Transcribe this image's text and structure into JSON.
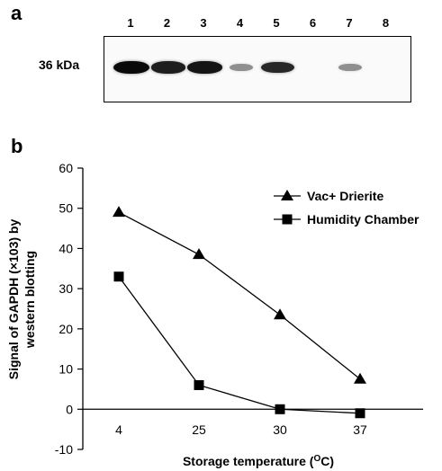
{
  "panel_a": {
    "letter": "a",
    "marker_label": "36 kDa",
    "lanes": [
      {
        "number": "1",
        "intensity": 1.0
      },
      {
        "number": "2",
        "intensity": 0.9
      },
      {
        "number": "3",
        "intensity": 0.95
      },
      {
        "number": "4",
        "intensity": 0.3
      },
      {
        "number": "5",
        "intensity": 0.85
      },
      {
        "number": "6",
        "intensity": 0.0
      },
      {
        "number": "7",
        "intensity": 0.3
      },
      {
        "number": "8",
        "intensity": 0.0
      }
    ]
  },
  "panel_b": {
    "letter": "b"
  },
  "chart_data": {
    "type": "line",
    "categories": [
      "4",
      "25",
      "30",
      "37"
    ],
    "series": [
      {
        "name": "Vac+ Drierite",
        "marker": "triangle",
        "values": [
          49,
          38.5,
          23.5,
          7.5
        ]
      },
      {
        "name": "Humidity Chamber",
        "marker": "square",
        "values": [
          33,
          6,
          0,
          -1
        ]
      }
    ],
    "xlabel": "Storage temperature (",
    "xlabel_sup": "O",
    "xlabel_suffix": "C)",
    "ylabel_line1": "Signal of GAPDH (×103) by",
    "ylabel_line2": "western blotting",
    "ylim": [
      -10,
      60
    ],
    "yticks": [
      -10,
      0,
      10,
      20,
      30,
      40,
      50,
      60
    ],
    "legend_position": "top-right",
    "grid": false
  }
}
